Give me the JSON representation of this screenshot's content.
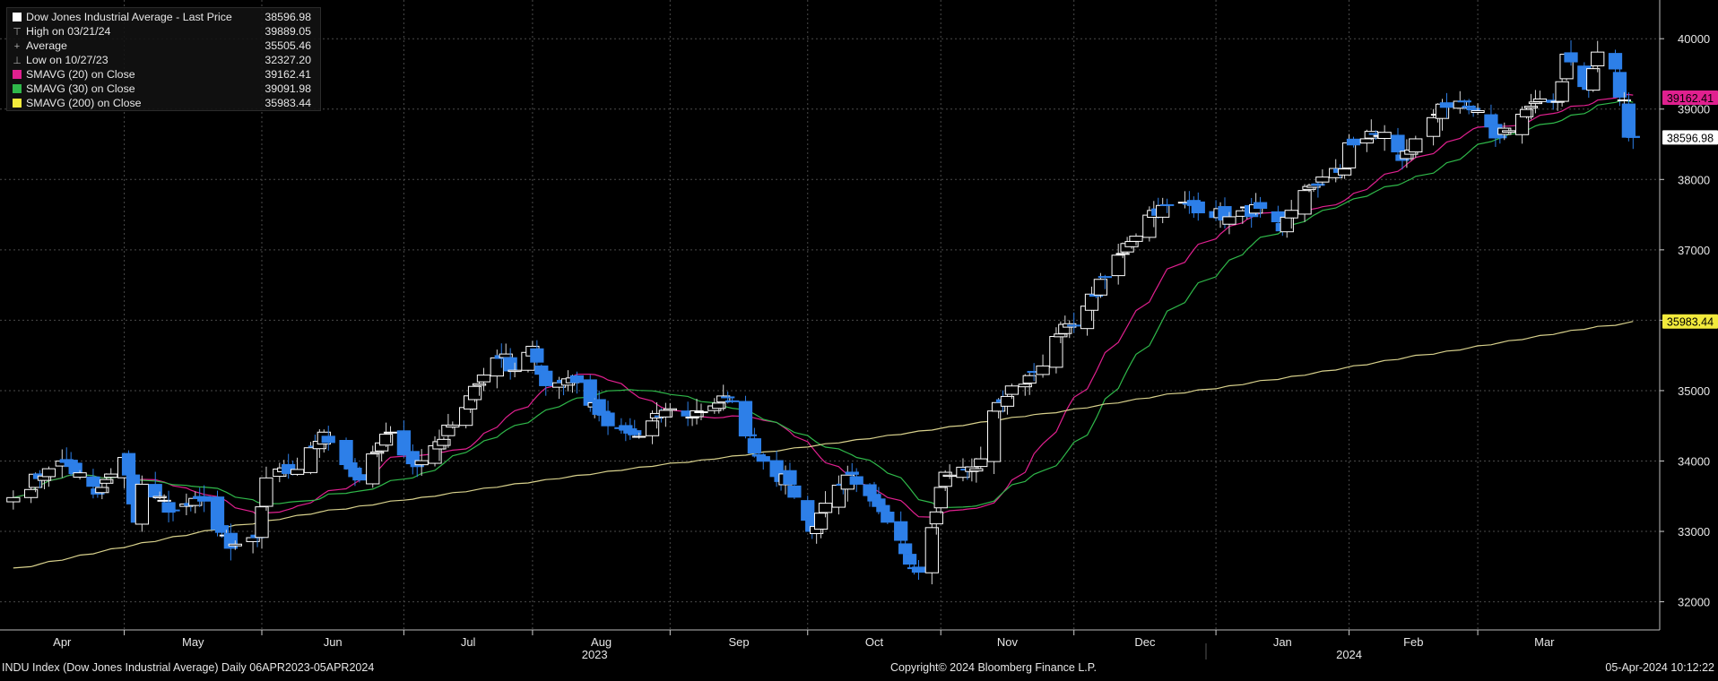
{
  "chart_data": {
    "type": "candlestick",
    "title": "Dow Jones Industrial Average - Last Price",
    "x_range": [
      "2023-04-06",
      "2024-04-05"
    ],
    "ylim": [
      31600,
      40550
    ],
    "yticks": [
      32000,
      33000,
      34000,
      35000,
      36000,
      37000,
      38000,
      39000,
      40000
    ],
    "months": [
      {
        "label": "Apr",
        "date": "2023-04-03"
      },
      {
        "label": "May",
        "date": "2023-05-01"
      },
      {
        "label": "Jun",
        "date": "2023-06-01"
      },
      {
        "label": "Jul",
        "date": "2023-07-03"
      },
      {
        "label": "Aug",
        "date": "2023-08-01"
      },
      {
        "label": "Sep",
        "date": "2023-09-01"
      },
      {
        "label": "Oct",
        "date": "2023-10-02"
      },
      {
        "label": "Nov",
        "date": "2023-11-01"
      },
      {
        "label": "Dec",
        "date": "2023-12-01"
      },
      {
        "label": "Jan",
        "date": "2024-01-02"
      },
      {
        "label": "Feb",
        "date": "2024-02-01"
      },
      {
        "label": "Mar",
        "date": "2024-03-01"
      }
    ],
    "year_labels": [
      {
        "label": "2023",
        "date": "2023-08-15"
      },
      {
        "label": "2024",
        "date": "2024-02-01"
      }
    ],
    "close_anchors": [
      [
        "2023-04-06",
        33480
      ],
      [
        "2023-04-14",
        33890
      ],
      [
        "2023-04-18",
        33980
      ],
      [
        "2023-04-25",
        33530
      ],
      [
        "2023-05-01",
        34050
      ],
      [
        "2023-05-04",
        33130
      ],
      [
        "2023-05-05",
        33670
      ],
      [
        "2023-05-12",
        33300
      ],
      [
        "2023-05-19",
        33430
      ],
      [
        "2023-05-25",
        32760
      ],
      [
        "2023-05-31",
        32910
      ],
      [
        "2023-06-02",
        33760
      ],
      [
        "2023-06-09",
        33880
      ],
      [
        "2023-06-13",
        34210
      ],
      [
        "2023-06-15",
        34410
      ],
      [
        "2023-06-23",
        33730
      ],
      [
        "2023-06-30",
        34410
      ],
      [
        "2023-07-06",
        33920
      ],
      [
        "2023-07-14",
        34510
      ],
      [
        "2023-07-19",
        35060
      ],
      [
        "2023-07-26",
        35520
      ],
      [
        "2023-07-27",
        35280
      ],
      [
        "2023-08-01",
        35630
      ],
      [
        "2023-08-04",
        35070
      ],
      [
        "2023-08-10",
        35180
      ],
      [
        "2023-08-18",
        34500
      ],
      [
        "2023-08-25",
        34350
      ],
      [
        "2023-08-31",
        34720
      ],
      [
        "2023-09-05",
        34640
      ],
      [
        "2023-09-14",
        34900
      ],
      [
        "2023-09-21",
        34070
      ],
      [
        "2023-09-28",
        33670
      ],
      [
        "2023-10-03",
        33000
      ],
      [
        "2023-10-06",
        33400
      ],
      [
        "2023-10-11",
        33800
      ],
      [
        "2023-10-13",
        33670
      ],
      [
        "2023-10-20",
        33130
      ],
      [
        "2023-10-27",
        32420
      ],
      [
        "2023-11-02",
        33840
      ],
      [
        "2023-11-09",
        33890
      ],
      [
        "2023-11-14",
        34830
      ],
      [
        "2023-11-22",
        35270
      ],
      [
        "2023-11-30",
        35950
      ],
      [
        "2023-12-04",
        36200
      ],
      [
        "2023-12-13",
        37090
      ],
      [
        "2023-12-19",
        37560
      ],
      [
        "2023-12-27",
        37650
      ],
      [
        "2024-01-05",
        37470
      ],
      [
        "2024-01-12",
        37590
      ],
      [
        "2024-01-17",
        37270
      ],
      [
        "2024-01-23",
        37900
      ],
      [
        "2024-01-31",
        38150
      ],
      [
        "2024-02-01",
        38520
      ],
      [
        "2024-02-09",
        38670
      ],
      [
        "2024-02-13",
        38270
      ],
      [
        "2024-02-22",
        39070
      ],
      [
        "2024-02-29",
        38990
      ],
      [
        "2024-03-05",
        38590
      ],
      [
        "2024-03-13",
        39040
      ],
      [
        "2024-03-19",
        39110
      ],
      [
        "2024-03-21",
        39780
      ],
      [
        "2024-03-26",
        39280
      ],
      [
        "2024-03-28",
        39810
      ],
      [
        "2024-04-01",
        39570
      ],
      [
        "2024-04-02",
        39170
      ],
      [
        "2024-04-03",
        39130
      ],
      [
        "2024-04-04",
        38600
      ],
      [
        "2024-04-05",
        38596.98
      ]
    ],
    "series": [
      {
        "name": "SMAVG (20)  on Close",
        "color": "#e0208f",
        "window": 20
      },
      {
        "name": "SMAVG (30)  on Close",
        "color": "#2fb84a",
        "window": 30
      },
      {
        "name": "SMAVG (200)  on Close",
        "color": "#d8d18c",
        "window": 200
      }
    ],
    "legend": {
      "rows": [
        {
          "label": "Dow Jones Industrial Average - Last Price",
          "value": "38596.98",
          "swatch": "#ffffff",
          "glyph": ""
        },
        {
          "label": "High on 03/21/24",
          "value": "39889.05",
          "swatch": "",
          "glyph": "⊤"
        },
        {
          "label": "Average",
          "value": "35505.46",
          "swatch": "",
          "glyph": "+"
        },
        {
          "label": "Low on 10/27/23",
          "value": "32327.20",
          "swatch": "",
          "glyph": "⊥"
        },
        {
          "label": "SMAVG (20)  on Close",
          "value": "39162.41",
          "swatch": "#e0208f",
          "glyph": ""
        },
        {
          "label": "SMAVG (30)  on Close",
          "value": "39091.98",
          "swatch": "#2fb84a",
          "glyph": ""
        },
        {
          "label": "SMAVG (200)  on Close",
          "value": "35983.44",
          "swatch": "#f2ea3c",
          "glyph": ""
        }
      ]
    },
    "last_labels": [
      {
        "value": "39162.41",
        "bg": "#e0208f",
        "fg": "#000000"
      },
      {
        "value": "38596.98",
        "bg": "#ffffff",
        "fg": "#000000"
      },
      {
        "value": "35983.44",
        "bg": "#f2ea3c",
        "fg": "#000000"
      }
    ],
    "colors": {
      "up": "#ffffff",
      "down": "#2d7fe8",
      "grid": "#4a4a4a",
      "background": "#000000"
    }
  },
  "footer": {
    "left": "INDU Index (Dow Jones Industrial Average)  Daily 06APR2023-05APR2024",
    "center": "Copyright© 2024 Bloomberg Finance L.P.",
    "right": "05-Apr-2024 10:12:22"
  }
}
